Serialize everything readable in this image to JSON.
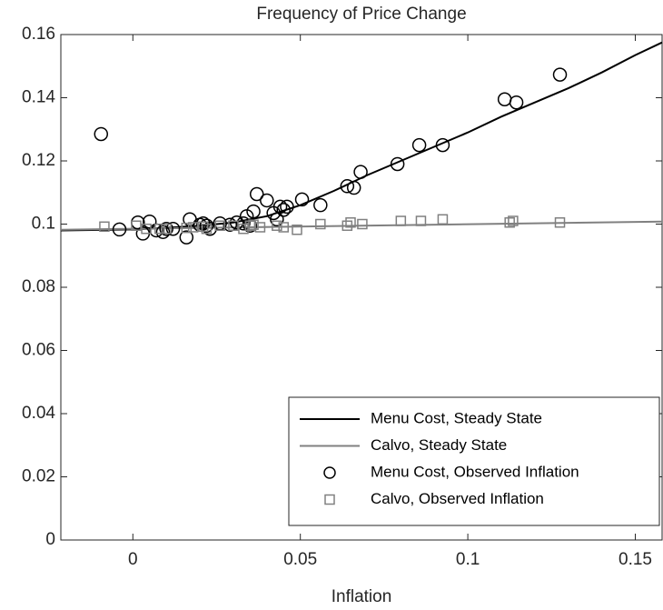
{
  "chart_data": {
    "type": "line",
    "title": "Frequency of Price Change",
    "x_label": "Inflation",
    "xlim": [
      -0.0215,
      0.158
    ],
    "ylim": [
      0,
      0.16
    ],
    "xticks": [
      0,
      0.05,
      0.1,
      0.15
    ],
    "yticks": [
      0,
      0.02,
      0.04,
      0.06,
      0.08,
      0.1,
      0.12,
      0.14,
      0.16
    ],
    "legend": "lower right",
    "series": [
      {
        "name": "Menu Cost, Steady State",
        "color": "#000000",
        "marker": "none",
        "x": [
          -0.0215,
          0,
          0.01,
          0.02,
          0.03,
          0.04,
          0.05,
          0.06,
          0.07,
          0.08,
          0.09,
          0.1,
          0.11,
          0.12,
          0.13,
          0.14,
          0.15,
          0.158
        ],
        "values": [
          0.098,
          0.0983,
          0.0988,
          0.0995,
          0.1005,
          0.1025,
          0.106,
          0.1105,
          0.1155,
          0.12,
          0.1245,
          0.129,
          0.134,
          0.1385,
          0.143,
          0.148,
          0.1535,
          0.1575
        ]
      },
      {
        "name": "Calvo, Steady State",
        "color": "#808080",
        "marker": "none",
        "x": [
          -0.0215,
          0.158
        ],
        "values": [
          0.0982,
          0.1008
        ]
      },
      {
        "name": "Menu Cost, Observed Inflation",
        "color": "#000000",
        "marker": "circle",
        "x": [
          -0.0095,
          -0.004,
          0.0015,
          0.003,
          0.005,
          0.007,
          0.009,
          0.01,
          0.012,
          0.016,
          0.017,
          0.02,
          0.021,
          0.022,
          0.023,
          0.026,
          0.029,
          0.031,
          0.033,
          0.034,
          0.035,
          0.036,
          0.037,
          0.04,
          0.042,
          0.043,
          0.044,
          0.045,
          0.046,
          0.0505,
          0.056,
          0.064,
          0.066,
          0.068,
          0.079,
          0.0855,
          0.0925,
          0.111,
          0.1145,
          0.1275
        ],
        "values": [
          0.1285,
          0.0983,
          0.1005,
          0.097,
          0.1008,
          0.098,
          0.0975,
          0.0985,
          0.0985,
          0.0958,
          0.1015,
          0.0998,
          0.1002,
          0.0995,
          0.0985,
          0.1002,
          0.0998,
          0.1005,
          0.1002,
          0.1025,
          0.0995,
          0.104,
          0.1095,
          0.1075,
          0.1035,
          0.1015,
          0.1055,
          0.1045,
          0.1055,
          0.1078,
          0.106,
          0.112,
          0.1115,
          0.1165,
          0.119,
          0.125,
          0.125,
          0.1395,
          0.1385,
          0.1473
        ]
      },
      {
        "name": "Calvo, Observed Inflation",
        "color": "#808080",
        "marker": "square",
        "x": [
          -0.0085,
          0.001,
          0.004,
          0.008,
          0.01,
          0.016,
          0.018,
          0.021,
          0.022,
          0.026,
          0.03,
          0.033,
          0.035,
          0.036,
          0.038,
          0.043,
          0.045,
          0.049,
          0.056,
          0.064,
          0.065,
          0.0685,
          0.08,
          0.086,
          0.0925,
          0.1125,
          0.1135,
          0.1275
        ],
        "values": [
          0.0992,
          0.0995,
          0.0985,
          0.0985,
          0.0985,
          0.0988,
          0.099,
          0.0992,
          0.0985,
          0.0995,
          0.0995,
          0.0985,
          0.0995,
          0.0998,
          0.099,
          0.0995,
          0.099,
          0.0982,
          0.1,
          0.0995,
          0.1005,
          0.1,
          0.101,
          0.101,
          0.1015,
          0.1005,
          0.101,
          0.1005
        ]
      }
    ]
  }
}
